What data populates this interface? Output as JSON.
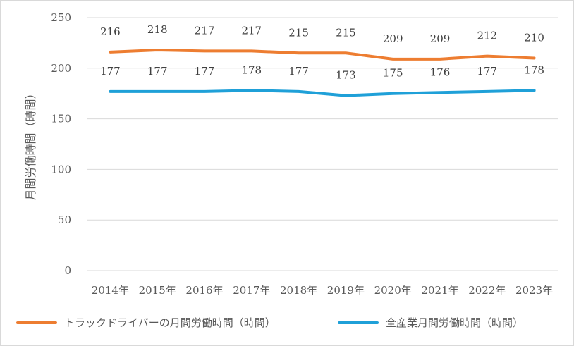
{
  "chart_data": {
    "type": "line",
    "title": "",
    "ylabel": "月間労働時間（時間）",
    "xlabel": "",
    "ylim": [
      0,
      250
    ],
    "yticks": [
      0,
      50,
      100,
      150,
      200,
      250
    ],
    "grid": true,
    "legend_position": "bottom",
    "categories": [
      "2014年",
      "2015年",
      "2016年",
      "2017年",
      "2018年",
      "2019年",
      "2020年",
      "2021年",
      "2022年",
      "2023年"
    ],
    "series": [
      {
        "name": "トラックドライバーの月間労働時間（時間）",
        "color": "#ED7D31",
        "values": [
          216,
          218,
          217,
          217,
          215,
          215,
          209,
          209,
          212,
          210
        ]
      },
      {
        "name": "全産業月間労働時間（時間）",
        "color": "#1FA0D8",
        "values": [
          177,
          177,
          177,
          178,
          177,
          173,
          175,
          176,
          177,
          178
        ]
      }
    ]
  }
}
